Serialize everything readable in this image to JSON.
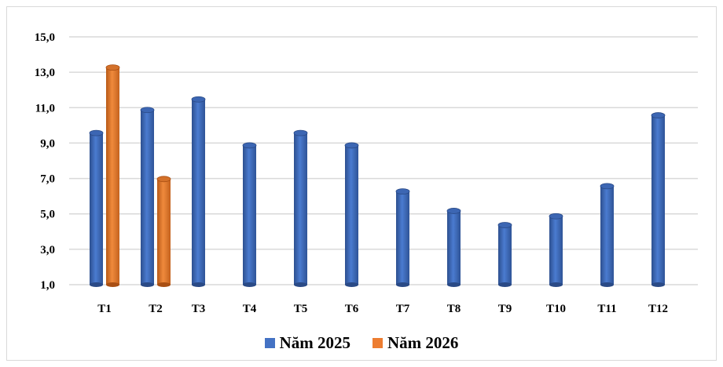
{
  "chart_data": {
    "type": "bar",
    "categories": [
      "T1",
      "T2",
      "T3",
      "T4",
      "T5",
      "T6",
      "T7",
      "T8",
      "T9",
      "T10",
      "T11",
      "T12"
    ],
    "series": [
      {
        "name": "Năm 2025",
        "color": "#4472C4",
        "values": [
          9.7,
          11.0,
          11.6,
          9.0,
          9.7,
          9.0,
          6.4,
          5.3,
          4.5,
          5.0,
          6.7,
          10.7
        ]
      },
      {
        "name": "Năm 2026",
        "color": "#ED7D31",
        "values": [
          13.4,
          7.1,
          null,
          null,
          null,
          null,
          null,
          null,
          null,
          null,
          null,
          null
        ]
      }
    ],
    "yticks": [
      "1,0",
      "3,0",
      "5,0",
      "7,0",
      "9,0",
      "11,0",
      "13,0",
      "15,0"
    ],
    "ylim": [
      1,
      15
    ],
    "grid": true,
    "legend_position": "bottom"
  }
}
